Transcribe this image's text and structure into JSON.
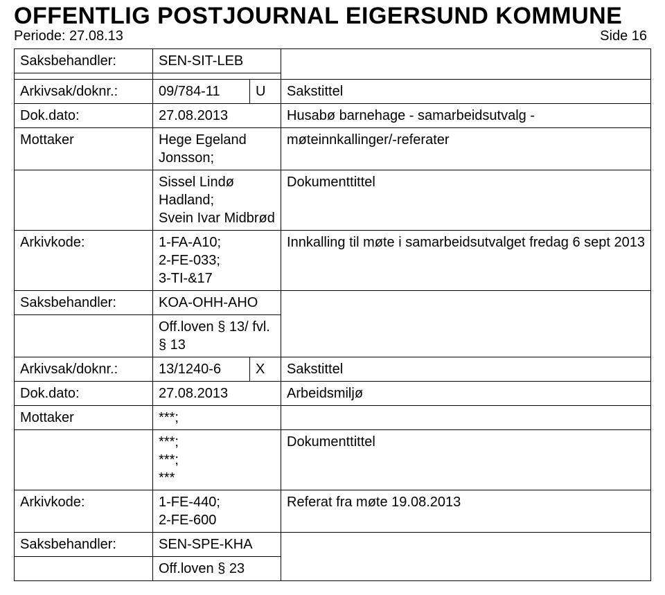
{
  "header": {
    "title": "OFFENTLIG POSTJOURNAL EIGERSUND KOMMUNE",
    "periode_label": "Periode: 27.08.13",
    "side_label": "Side 16"
  },
  "labels": {
    "saksbehandler": "Saksbehandler:",
    "arkivsak": "Arkivsak/doknr.:",
    "dokdato": "Dok.dato:",
    "mottaker": "Mottaker",
    "arkivkode": "Arkivkode:",
    "sakstittel": "Sakstittel",
    "doktittel": "Dokumenttittel"
  },
  "rec1": {
    "saksbehandler": "SEN-SIT-LEB",
    "arkivsak_nr": "09/784-11",
    "arkivsak_type": "U",
    "dokdato": "27.08.2013",
    "sakstittel_text": "Husabø barnehage - samarbeidsutvalg -",
    "mottaker_val": "Hege Egeland Jonsson;",
    "mottaker_extra1": "møteinnkallinger/-referater",
    "mottaker_line2": "Sissel Lindø Hadland;\nSvein Ivar Midbrød",
    "arkivkode_val": "1-FA-A10;\n2-FE-033;\n3-TI-&17",
    "arkivkode_text": "Innkalling til møte i samarbeidsutvalget fredag 6 sept 2013",
    "saksbehandler2": "KOA-OHH-AHO",
    "offloven": "Off.loven § 13/ fvl. § 13"
  },
  "rec2": {
    "arkivsak_nr": "13/1240-6",
    "arkivsak_type": "X",
    "dokdato": "27.08.2013",
    "sakstittel_text": "Arbeidsmiljø",
    "mottaker_val": "***;",
    "mottaker_line2": "***;\n***;\n***",
    "arkivkode_val": "1-FE-440;\n2-FE-600",
    "arkivkode_text": "Referat fra møte 19.08.2013",
    "saksbehandler2": "SEN-SPE-KHA",
    "offloven": "Off.loven § 23"
  }
}
